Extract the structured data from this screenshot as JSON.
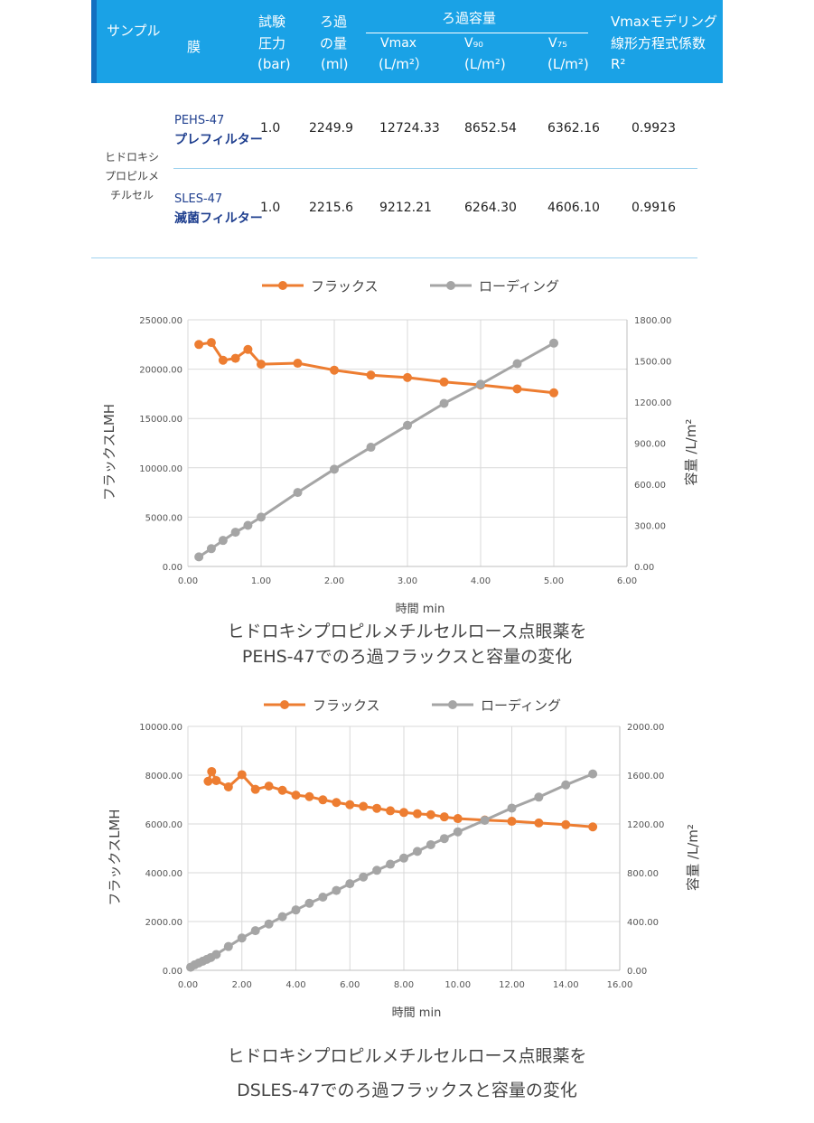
{
  "table": {
    "header": {
      "sample": "サンプル",
      "membrane": "膜",
      "pressure": [
        "試験",
        "圧力",
        "(bar)"
      ],
      "volume": [
        "ろ過",
        "の量",
        "(ml)"
      ],
      "capacity_group": "ろ過容量",
      "vmax": [
        "Vmax",
        "(L/m²）"
      ],
      "v90": [
        "V₉₀",
        "(L/m²)"
      ],
      "v75": [
        "V₇₅",
        "(L/m²)"
      ],
      "r2": [
        "Vmaxモデリング",
        "線形方程式係数",
        "R²"
      ]
    },
    "sample_name": [
      "ヒドロキシ",
      "プロピルメ",
      "チルセル"
    ],
    "rows": [
      {
        "membrane_code": "PEHS-47",
        "membrane_type": "プレフィルター",
        "pressure": "1.0",
        "volume": "2249.9",
        "vmax": "12724.33",
        "v90": "8652.54",
        "v75": "6362.16",
        "r2": "0.9923"
      },
      {
        "membrane_code": "SLES-47",
        "membrane_type": "滅菌フィルター",
        "pressure": "1.0",
        "volume": "2215.6",
        "vmax": "9212.21",
        "v90": "6264.30",
        "v75": "4606.10",
        "r2": "0.9916"
      }
    ]
  },
  "chart_data": [
    {
      "type": "line",
      "legend": [
        "フラックス",
        "ローディング"
      ],
      "xlabel": "時間  min",
      "ylabel": "フラックスLMH",
      "y2label": "容量 /L/m²",
      "xlim": [
        0,
        6
      ],
      "ylim": [
        0,
        25000
      ],
      "y2lim": [
        0,
        1800
      ],
      "xticks": [
        "0.00",
        "1.00",
        "2.00",
        "3.00",
        "4.00",
        "5.00",
        "6.00"
      ],
      "yticks": [
        "0.00",
        "5000.00",
        "10000.00",
        "15000.00",
        "20000.00",
        "25000.00"
      ],
      "y2ticks": [
        "0.00",
        "300.00",
        "600.00",
        "900.00",
        "1200.00",
        "1500.00",
        "1800.00"
      ],
      "series": [
        {
          "name": "フラックス",
          "axis": "left",
          "color": "#ed7d31",
          "x": [
            0.15,
            0.32,
            0.48,
            0.65,
            0.82,
            1.0,
            1.5,
            2.0,
            2.5,
            3.0,
            3.5,
            4.0,
            4.5,
            5.0
          ],
          "y": [
            22500,
            22700,
            20900,
            21100,
            22000,
            20500,
            20600,
            19900,
            19400,
            19150,
            18700,
            18400,
            18000,
            17600
          ]
        },
        {
          "name": "ローディング",
          "axis": "right",
          "color": "#a5a5a5",
          "x": [
            0.15,
            0.32,
            0.48,
            0.65,
            0.82,
            1.0,
            1.5,
            2.0,
            2.5,
            3.0,
            3.5,
            4.0,
            4.5,
            5.0
          ],
          "y": [
            70,
            130,
            190,
            250,
            300,
            360,
            540,
            710,
            870,
            1030,
            1190,
            1330,
            1480,
            1630
          ]
        }
      ],
      "caption": [
        "ヒドロキシプロピルメチルセルロース点眼薬を",
        "PEHS-47でのろ過フラックスと容量の変化"
      ]
    },
    {
      "type": "line",
      "legend": [
        "フラックス",
        "ローディング"
      ],
      "xlabel": "時間  min",
      "ylabel": "フラックスLMH",
      "y2label": "容量 /L/m²",
      "xlim": [
        0,
        16
      ],
      "ylim": [
        0,
        10000
      ],
      "y2lim": [
        0,
        2000
      ],
      "xticks": [
        "0.00",
        "2.00",
        "4.00",
        "6.00",
        "8.00",
        "10.00",
        "12.00",
        "14.00",
        "16.00"
      ],
      "yticks": [
        "0.00",
        "2000.00",
        "4000.00",
        "6000.00",
        "8000.00",
        "10000.00"
      ],
      "y2ticks": [
        "0.00",
        "400.00",
        "800.00",
        "1200.00",
        "1600.00",
        "2000.00"
      ],
      "series": [
        {
          "name": "フラックス",
          "axis": "left",
          "color": "#ed7d31",
          "x": [
            0.75,
            0.88,
            1.05,
            1.5,
            2.0,
            2.5,
            3.0,
            3.5,
            4.0,
            4.5,
            5.0,
            5.5,
            6.0,
            6.5,
            7.0,
            7.5,
            8.0,
            8.5,
            9.0,
            9.5,
            10.0,
            11.0,
            12.0,
            13.0,
            14.0,
            15.0
          ],
          "y": [
            7750,
            8150,
            7780,
            7520,
            8020,
            7420,
            7550,
            7380,
            7180,
            7120,
            6990,
            6880,
            6790,
            6720,
            6640,
            6540,
            6470,
            6420,
            6380,
            6290,
            6220,
            6160,
            6110,
            6040,
            5970,
            5880
          ]
        },
        {
          "name": "ローディング",
          "axis": "right",
          "color": "#a5a5a5",
          "x": [
            0.1,
            0.25,
            0.4,
            0.55,
            0.7,
            0.85,
            1.05,
            1.5,
            2.0,
            2.5,
            3.0,
            3.5,
            4.0,
            4.5,
            5.0,
            5.5,
            6.0,
            6.5,
            7.0,
            7.5,
            8.0,
            8.5,
            9.0,
            9.5,
            10.0,
            11.0,
            12.0,
            13.0,
            14.0,
            15.0
          ],
          "y": [
            25,
            45,
            60,
            75,
            90,
            105,
            130,
            195,
            265,
            325,
            380,
            440,
            495,
            550,
            600,
            655,
            710,
            765,
            820,
            870,
            920,
            975,
            1030,
            1080,
            1135,
            1230,
            1330,
            1420,
            1520,
            1610
          ]
        }
      ],
      "caption": [
        "ヒドロキシプロピルメチルセルロース点眼薬を",
        "DSLES-47でのろ過フラックスと容量の変化"
      ]
    }
  ]
}
